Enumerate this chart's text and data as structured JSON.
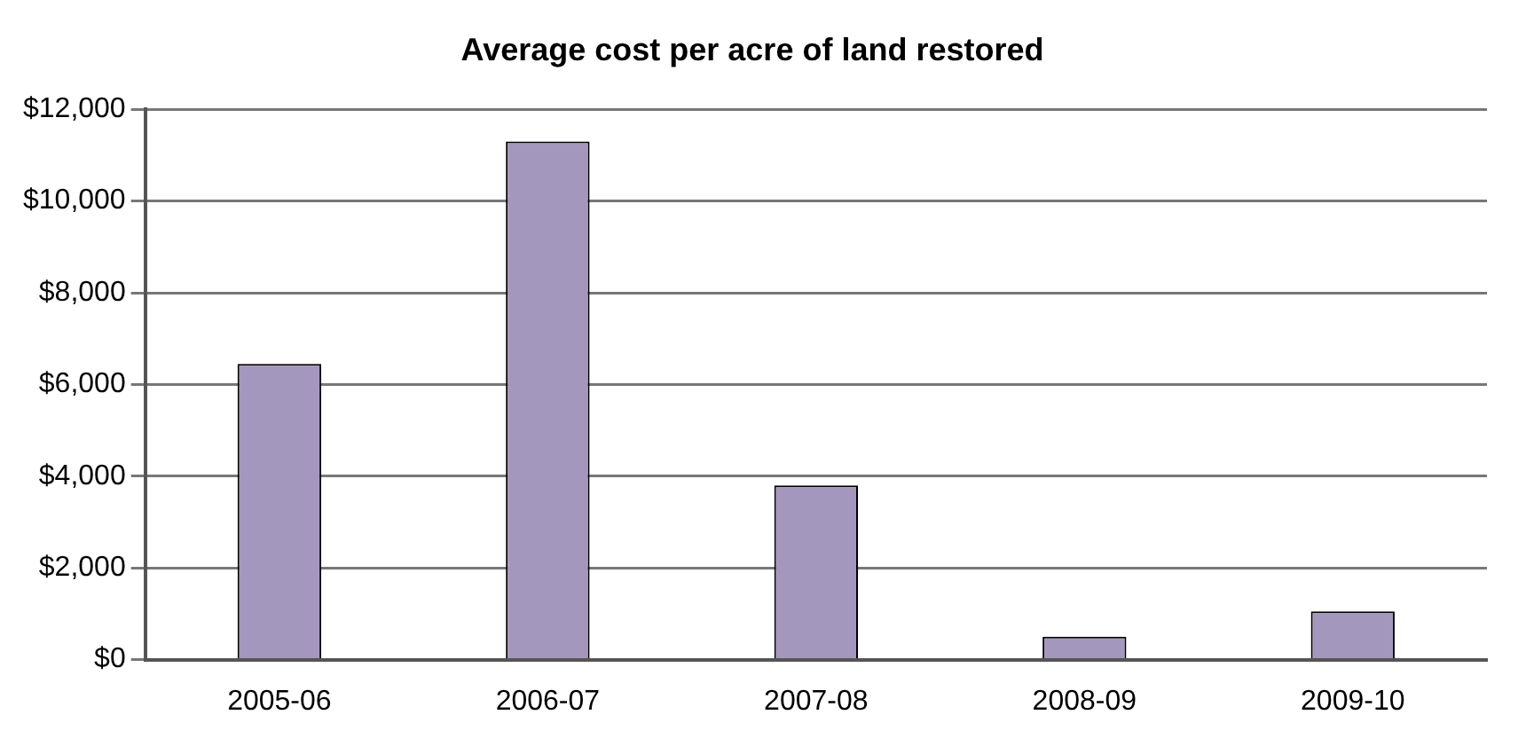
{
  "chart_data": {
    "type": "bar",
    "title": "Average cost per acre of land restored",
    "categories": [
      "2005-06",
      "2006-07",
      "2007-08",
      "2008-09",
      "2009-10"
    ],
    "values": [
      6450,
      11300,
      3800,
      500,
      1050
    ],
    "color": "#a497bd",
    "ylim": [
      0,
      12000
    ],
    "yticks": [
      {
        "value": 0,
        "label": "$0"
      },
      {
        "value": 2000,
        "label": "$2,000"
      },
      {
        "value": 4000,
        "label": "$4,000"
      },
      {
        "value": 6000,
        "label": "$6,000"
      },
      {
        "value": 8000,
        "label": "$8,000"
      },
      {
        "value": 10000,
        "label": "$10,000"
      },
      {
        "value": 12000,
        "label": "$12,000"
      }
    ],
    "grid": "y",
    "legend": false
  }
}
